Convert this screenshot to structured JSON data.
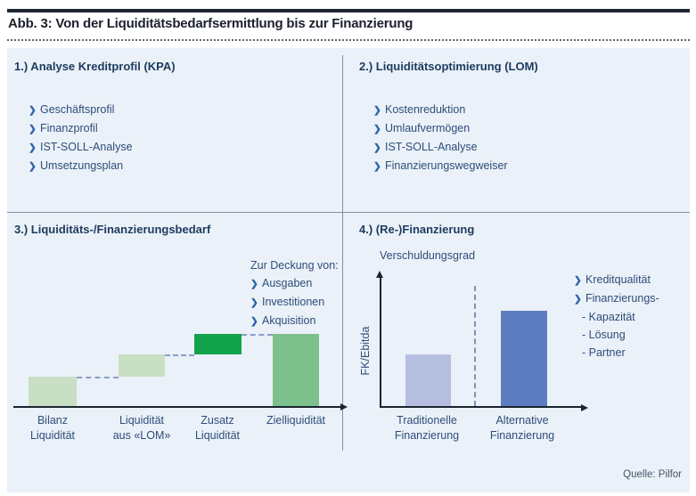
{
  "figure": {
    "title": "Abb. 3: Von der Liquiditätsbedarfsermittlung bis zur Finanzierung",
    "source": "Quelle: Pilfor"
  },
  "icons": {
    "chevron": "❯"
  },
  "colors": {
    "panel_bg": "#ebf1f8",
    "heading_navy": "#1c3a5e",
    "body_navy": "#2d4d7a",
    "chevron_blue": "#2d64a8",
    "divider_grey": "#8090a6",
    "axis_dark": "#1a2430",
    "pale_green": "#c8dfc4",
    "strong_green": "#12a24b",
    "mid_green": "#7cc08b",
    "pale_blue": "#b6bee0",
    "mid_blue": "#5c7ec0",
    "dash_blue": "#8a9cc8"
  },
  "quadrants": [
    {
      "heading": "1.) Analyse Kreditprofil (KPA)",
      "items": [
        "Geschäftsprofil",
        "Finanzprofil",
        "IST-SOLL-Analyse",
        "Umsetzungsplan"
      ]
    },
    {
      "heading": "2.) Liquiditätsoptimierung (LOM)",
      "items": [
        "Kostenreduktion",
        "Umlaufvermögen",
        "IST-SOLL-Analyse",
        "Finanzierungswegweiser"
      ]
    },
    {
      "heading": "3.) Liquiditäts-/Finanzierungsbedarf",
      "coverage_title": "Zur Deckung von:",
      "coverage_items": [
        "Ausgaben",
        "Investitionen",
        "Akquisition"
      ]
    },
    {
      "heading": "4.) (Re-)Finanzierung",
      "items": [
        "Kreditqualität",
        "Finanzierungs-"
      ],
      "subitems": [
        "- Kapazität",
        "- Lösung",
        "- Partner"
      ]
    }
  ],
  "chart_data": [
    {
      "type": "bar",
      "subtype": "waterfall",
      "section": "3.) Liquiditäts-/Finanzierungsbedarf",
      "categories": [
        "Bilanz Liquidität",
        "Liquidität aus «LOM»",
        "Zusatz Liquidität",
        "Zielliquidität"
      ],
      "category_lines": [
        [
          "Bilanz",
          "Liquidität"
        ],
        [
          "Liquidität",
          "aus «LOM»"
        ],
        [
          "Zusatz",
          "Liquidität"
        ],
        [
          "Zielliquidität"
        ]
      ],
      "values": [
        [
          0,
          33
        ],
        [
          33,
          58
        ],
        [
          58,
          81
        ],
        [
          0,
          81
        ]
      ],
      "colors": [
        "#c8dfc4",
        "#c8dfc4",
        "#12a24b",
        "#7cc08b"
      ],
      "connector_color": "#8a9cc8",
      "x_axis_arrow": true,
      "grid": false,
      "legend": false
    },
    {
      "type": "bar",
      "section": "4.) (Re-)Finanzierung",
      "title": "Verschuldungsgrad",
      "ylabel": "FK/Ebitda",
      "categories": [
        "Traditionelle Finanzierung",
        "Alternative Finanzierung"
      ],
      "category_lines": [
        [
          "Traditionelle",
          "Finanzierung"
        ],
        [
          "Alternative",
          "Finanzierung"
        ]
      ],
      "values": [
        58,
        107
      ],
      "colors": [
        "#b6bee0",
        "#5c7ec0"
      ],
      "divider": "dashed-vertical",
      "x_axis_arrow": true,
      "y_axis_arrow": true,
      "grid": false,
      "legend": false
    }
  ]
}
